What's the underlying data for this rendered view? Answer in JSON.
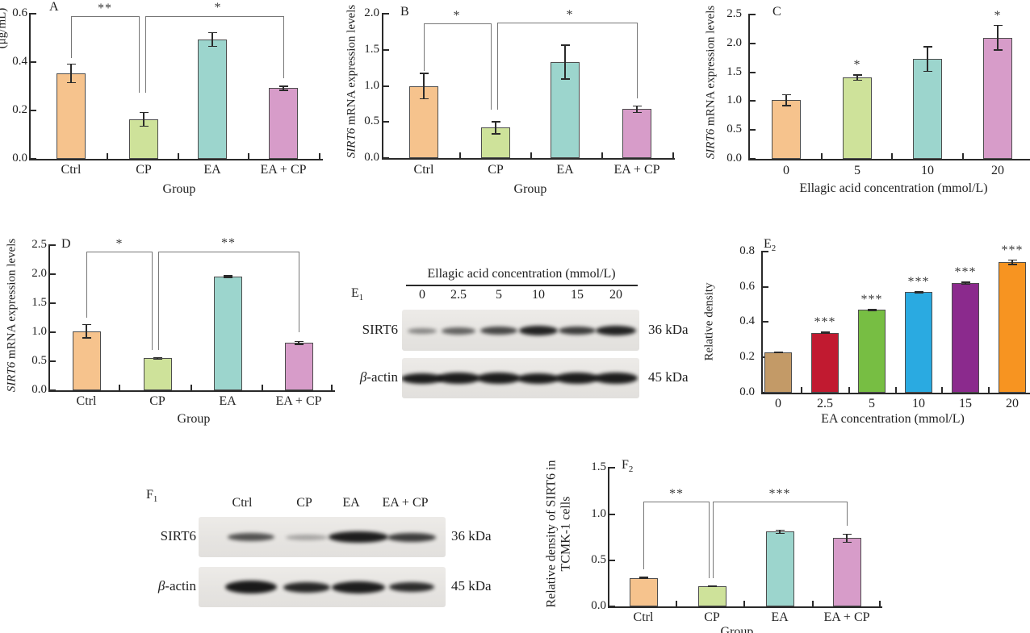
{
  "chart_data": [
    {
      "id": "A",
      "type": "bar",
      "panel_label": "A",
      "panel_label_sub": "",
      "ylabel": "",
      "ylabel_italic": "",
      "ylabel_clipped_fragment": "(μg/mL)",
      "xlabel": "Group",
      "categories": [
        "Ctrl",
        "CP",
        "EA",
        "EA + CP"
      ],
      "values": [
        0.355,
        0.165,
        0.495,
        0.293
      ],
      "errors": [
        0.04,
        0.03,
        0.03,
        0.01
      ],
      "yticks": [
        0,
        0.2,
        0.4,
        0.6
      ],
      "ytick_labels": [
        "0.0",
        "0.2",
        "0.4",
        "0.6"
      ],
      "ylim": [
        0,
        0.6
      ],
      "bar_colors": [
        "#F6C38D",
        "#CEE29A",
        "#9CD5CD",
        "#D79CC9"
      ],
      "stars": [
        "",
        "",
        "",
        ""
      ],
      "significance": [
        {
          "label": "**",
          "between": [
            "Ctrl",
            "CP"
          ]
        },
        {
          "label": "*",
          "between": [
            "CP",
            "EA + CP"
          ]
        }
      ]
    },
    {
      "id": "B",
      "type": "bar",
      "panel_label": "B",
      "panel_label_sub": "",
      "ylabel": "SIRT6 mRNA expression levels",
      "ylabel_italic": "SIRT6",
      "xlabel": "Group",
      "categories": [
        "Ctrl",
        "CP",
        "EA",
        "EA + CP"
      ],
      "values": [
        1.0,
        0.42,
        1.33,
        0.68
      ],
      "errors": [
        0.18,
        0.09,
        0.24,
        0.05
      ],
      "yticks": [
        0,
        0.5,
        1.0,
        1.5,
        2.0
      ],
      "ytick_labels": [
        "0.0",
        "0.5",
        "1.0",
        "1.5",
        "2.0"
      ],
      "ylim": [
        0,
        2.0
      ],
      "bar_colors": [
        "#F6C38D",
        "#CEE29A",
        "#9CD5CD",
        "#D79CC9"
      ],
      "stars": [
        "",
        "",
        "",
        ""
      ],
      "significance": [
        {
          "label": "*",
          "between": [
            "Ctrl",
            "CP"
          ]
        },
        {
          "label": "*",
          "between": [
            "CP",
            "EA + CP"
          ]
        }
      ]
    },
    {
      "id": "C",
      "type": "bar",
      "panel_label": "C",
      "panel_label_sub": "",
      "ylabel": "SIRT6 mRNA expression levels",
      "ylabel_italic": "SIRT6",
      "xlabel": "Ellagic acid concentration (mmol/L)",
      "categories": [
        "0",
        "5",
        "10",
        "20"
      ],
      "values": [
        1.02,
        1.41,
        1.73,
        2.1
      ],
      "errors": [
        0.1,
        0.05,
        0.22,
        0.22
      ],
      "yticks": [
        0,
        0.5,
        1.0,
        1.5,
        2.0,
        2.5
      ],
      "ytick_labels": [
        "0.0",
        "0.5",
        "1.0",
        "1.5",
        "2.0",
        "2.5"
      ],
      "ylim": [
        0,
        2.5
      ],
      "bar_colors": [
        "#F6C38D",
        "#CEE29A",
        "#9CD5CD",
        "#D79CC9"
      ],
      "stars": [
        "",
        "*",
        "",
        "*"
      ],
      "significance": []
    },
    {
      "id": "D",
      "type": "bar",
      "panel_label": "D",
      "panel_label_sub": "",
      "ylabel": "SIRT6 mRNA expression levels",
      "ylabel_italic": "SIRT6",
      "xlabel": "Group",
      "categories": [
        "Ctrl",
        "CP",
        "EA",
        "EA + CP"
      ],
      "values": [
        1.02,
        0.55,
        1.96,
        0.82
      ],
      "errors": [
        0.12,
        0.02,
        0.02,
        0.03
      ],
      "yticks": [
        0,
        0.5,
        1.0,
        1.5,
        2.0,
        2.5
      ],
      "ytick_labels": [
        "0.0",
        "0.5",
        "1.0",
        "1.5",
        "2.0",
        "2.5"
      ],
      "ylim": [
        0,
        2.5
      ],
      "bar_colors": [
        "#F6C38D",
        "#CEE29A",
        "#9CD5CD",
        "#D79CC9"
      ],
      "stars": [
        "",
        "",
        "",
        ""
      ],
      "significance": [
        {
          "label": "*",
          "between": [
            "Ctrl",
            "CP"
          ]
        },
        {
          "label": "**",
          "between": [
            "CP",
            "EA + CP"
          ]
        }
      ]
    },
    {
      "id": "E2",
      "type": "bar",
      "panel_label": "E",
      "panel_label_sub": "2",
      "ylabel": "Relative density",
      "ylabel_italic": "",
      "xlabel": "EA concentration (mmol/L)",
      "categories": [
        "0",
        "2.5",
        "5",
        "10",
        "15",
        "20"
      ],
      "values": [
        0.23,
        0.34,
        0.47,
        0.57,
        0.62,
        0.74
      ],
      "errors": [
        0.005,
        0.005,
        0.005,
        0.005,
        0.008,
        0.015
      ],
      "yticks": [
        0,
        0.2,
        0.4,
        0.6,
        0.8
      ],
      "ytick_labels": [
        "0.0",
        "0.2",
        "0.4",
        "0.6",
        "0.8"
      ],
      "ylim": [
        0,
        0.8
      ],
      "bar_colors": [
        "#C39A67",
        "#C11A30",
        "#77BE43",
        "#2AAAE1",
        "#8B2A8D",
        "#F79421"
      ],
      "stars": [
        "",
        "***",
        "***",
        "***",
        "***",
        "***"
      ],
      "significance": []
    },
    {
      "id": "F2",
      "type": "bar",
      "panel_label": "F",
      "panel_label_sub": "2",
      "ylabel": "Relative density of SIRT6 in TCMK-1 cells",
      "ylabel_lines": [
        "Relative density of SIRT6 in",
        "TCMK-1 cells"
      ],
      "ylabel_italic": "",
      "xlabel": "Group",
      "categories": [
        "Ctrl",
        "CP",
        "EA",
        "EA + CP"
      ],
      "values": [
        0.31,
        0.22,
        0.81,
        0.74
      ],
      "errors": [
        0.01,
        0.01,
        0.02,
        0.05
      ],
      "yticks": [
        0,
        0.5,
        1.0,
        1.5
      ],
      "ytick_labels": [
        "0.0",
        "0.5",
        "1.0",
        "1.5"
      ],
      "ylim": [
        0,
        1.5
      ],
      "bar_colors": [
        "#F6C38D",
        "#CEE29A",
        "#9CD5CD",
        "#D79CC9"
      ],
      "stars": [
        "",
        "",
        "",
        ""
      ],
      "significance": [
        {
          "label": "**",
          "between": [
            "Ctrl",
            "CP"
          ]
        },
        {
          "label": "***",
          "between": [
            "CP",
            "EA + CP"
          ]
        }
      ]
    }
  ],
  "blots": [
    {
      "id": "E1",
      "panel_label": "E",
      "panel_label_sub": "1",
      "header": "Ellagic acid concentration (mmol/L)",
      "lanes": [
        "0",
        "2.5",
        "5",
        "10",
        "15",
        "20"
      ],
      "rows": [
        {
          "label": "SIRT6",
          "weight": "36 kDa",
          "band_intensities": [
            0.45,
            0.62,
            0.75,
            0.92,
            0.8,
            0.92
          ]
        },
        {
          "label": "β-actin",
          "weight": "45 kDa",
          "band_intensities": [
            0.95,
            0.95,
            0.95,
            0.95,
            0.95,
            0.95
          ]
        }
      ]
    },
    {
      "id": "F1",
      "panel_label": "F",
      "panel_label_sub": "1",
      "header": "",
      "lanes": [
        "Ctrl",
        "CP",
        "EA",
        "EA + CP"
      ],
      "rows": [
        {
          "label": "SIRT6",
          "weight": "36 kDa",
          "band_intensities": [
            0.7,
            0.3,
            0.95,
            0.8
          ]
        },
        {
          "label": "β-actin",
          "weight": "45 kDa",
          "band_intensities": [
            0.97,
            0.9,
            0.95,
            0.88
          ]
        }
      ]
    }
  ]
}
